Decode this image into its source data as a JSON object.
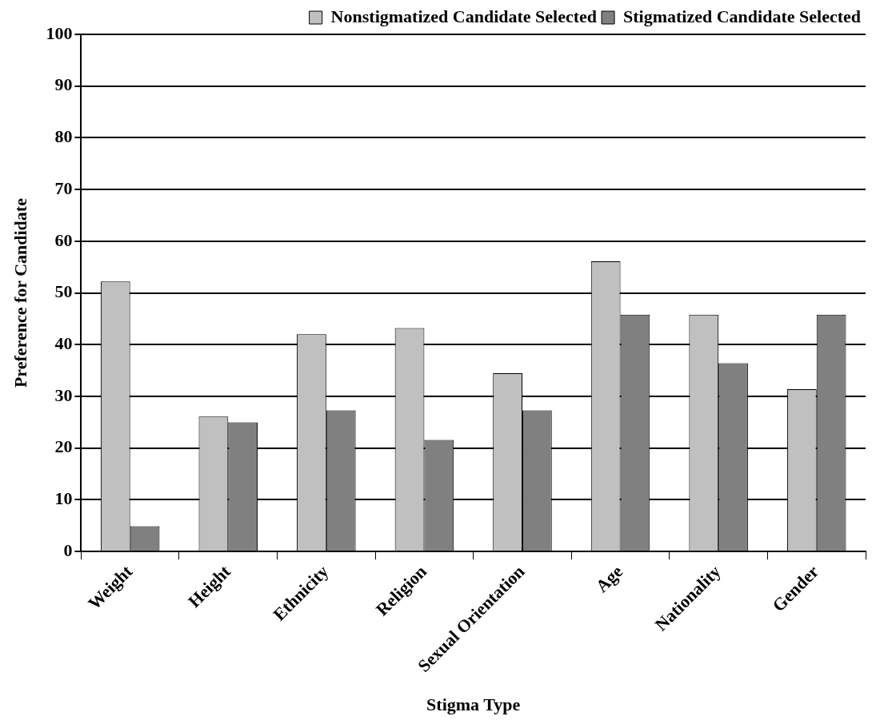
{
  "chart_data": {
    "type": "bar",
    "xlabel": "Stigma Type",
    "ylabel": "Preference for Candidate",
    "categories": [
      "Weight",
      "Height",
      "Ethnicity",
      "Religion",
      "Sexual Orientation",
      "Age",
      "Nationality",
      "Gender"
    ],
    "series": [
      {
        "name": "Nonstigmatized Candidate Selected",
        "color": "#c0c0c0",
        "values": [
          52.2,
          26.1,
          42,
          43.2,
          34.5,
          56.1,
          45.8,
          31.4
        ]
      },
      {
        "name": "Stigmatized Candidate Selected",
        "color": "#808080",
        "values": [
          4.9,
          25,
          27.3,
          21.6,
          27.3,
          45.8,
          36.4,
          45.8
        ]
      }
    ],
    "ylim": [
      0,
      100
    ],
    "yticks": [
      0,
      10,
      20,
      30,
      40,
      50,
      60,
      70,
      80,
      90,
      100
    ],
    "grid": "y",
    "legend": "top right"
  }
}
